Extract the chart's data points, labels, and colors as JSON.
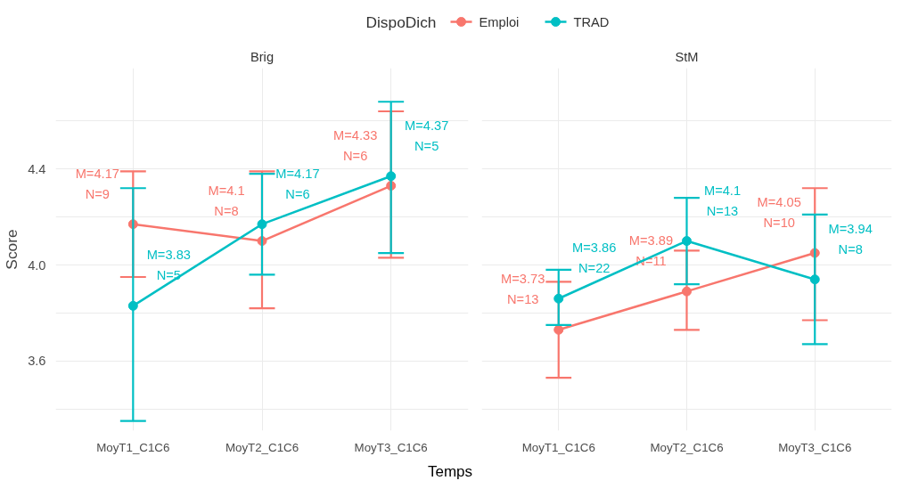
{
  "chart_data": [
    {
      "type": "line",
      "title": "Brig",
      "xlabel": "Temps",
      "ylabel": "Score",
      "legend_title": "DispoDich",
      "legend": "top",
      "marker": "circle",
      "grid": true,
      "categories": [
        "MoyT1_C1C6",
        "MoyT2_C1C6",
        "MoyT3_C1C6"
      ],
      "ylim": [
        3.31,
        4.82
      ],
      "yticks": [
        {
          "value": 3.4,
          "label": null
        },
        3.6,
        {
          "value": 3.8,
          "label": null
        },
        {
          "value": 4.0,
          "label": "4.0"
        },
        {
          "value": 4.2,
          "label": null
        },
        4.4,
        {
          "value": 4.6,
          "label": null
        }
      ],
      "series": [
        {
          "name": "Emploi",
          "color": "#f8766d",
          "values": [
            4.17,
            4.1,
            4.33
          ],
          "errors": [
            [
              3.95,
              4.39
            ],
            [
              3.82,
              4.39
            ],
            [
              4.03,
              4.64
            ]
          ],
          "value_labels": [
            "M=4.17\nN=9",
            "M=4.1\nN=8",
            "M=4.33\nN=6"
          ]
        },
        {
          "name": "TRAD",
          "color": "#00bfc4",
          "values": [
            3.83,
            4.17,
            4.37
          ],
          "errors": [
            [
              3.35,
              4.32
            ],
            [
              3.96,
              4.38
            ],
            [
              4.05,
              4.68
            ]
          ],
          "value_labels": [
            "M=3.83\nN=5",
            "M=4.17\nN=6",
            "M=4.37\nN=5"
          ]
        }
      ]
    },
    {
      "type": "line",
      "title": "StM",
      "tick_labels": "x",
      "marker": "circle",
      "grid": true,
      "categories": [
        "MoyT1_C1C6",
        "MoyT2_C1C6",
        "MoyT3_C1C6"
      ],
      "ylim": [
        3.31,
        4.82
      ],
      "yticks": [
        {
          "value": 3.4,
          "label": null
        },
        3.6,
        {
          "value": 3.8,
          "label": null
        },
        4.0,
        {
          "value": 4.2,
          "label": null
        },
        4.4,
        {
          "value": 4.6,
          "label": null
        }
      ],
      "series": [
        {
          "color": "#f8766d",
          "values": [
            3.73,
            3.89,
            4.05
          ],
          "errors": [
            [
              3.53,
              3.93
            ],
            [
              3.73,
              4.06
            ],
            [
              3.77,
              4.32
            ]
          ],
          "value_labels": [
            "M=3.73\nN=13",
            "M=3.89\nN=11",
            "M=4.05\nN=10"
          ]
        },
        {
          "color": "#00bfc4",
          "values": [
            3.86,
            4.1,
            3.94
          ],
          "errors": [
            [
              3.75,
              3.98
            ],
            [
              3.92,
              4.28
            ],
            [
              3.67,
              4.21
            ]
          ],
          "value_labels": [
            "M=3.86\nN=22",
            "M=4.1\nN=13",
            "M=3.94\nN=8"
          ]
        }
      ]
    }
  ]
}
